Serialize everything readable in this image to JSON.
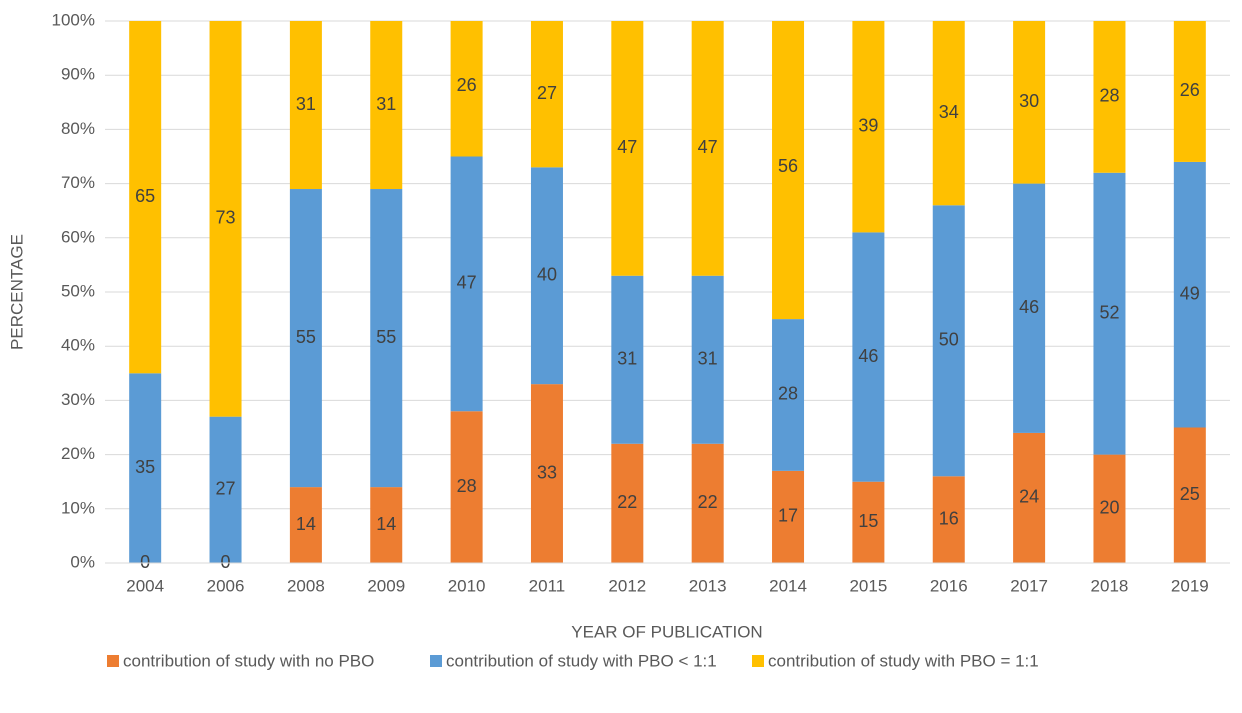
{
  "chart_data": {
    "type": "stacked_bar",
    "xlabel": "YEAR OF PUBLICATION",
    "ylabel": "PERCENTAGE",
    "categories": [
      "2004",
      "2006",
      "2008",
      "2009",
      "2010",
      "2011",
      "2012",
      "2013",
      "2014",
      "2015",
      "2016",
      "2017",
      "2018",
      "2019"
    ],
    "series": [
      {
        "name": "contribution of study with no PBO",
        "color": "#ed7d31",
        "values": [
          0,
          0,
          14,
          14,
          28,
          33,
          22,
          22,
          17,
          15,
          16,
          24,
          20,
          25
        ]
      },
      {
        "name": "contribution of study with PBO < 1:1",
        "color": "#5b9bd5",
        "values": [
          35,
          27,
          55,
          55,
          47,
          40,
          31,
          31,
          28,
          46,
          50,
          46,
          52,
          49
        ]
      },
      {
        "name": "contribution of study with PBO = 1:1",
        "color": "#ffc000",
        "values": [
          65,
          73,
          31,
          31,
          26,
          27,
          47,
          47,
          56,
          39,
          34,
          30,
          28,
          26
        ]
      }
    ],
    "ylim": [
      0,
      100
    ],
    "yticks": [
      {
        "value": 0,
        "label": "0%"
      },
      {
        "value": 10,
        "label": "10%"
      },
      {
        "value": 20,
        "label": "20%"
      },
      {
        "value": 30,
        "label": "30%"
      },
      {
        "value": 40,
        "label": "40%"
      },
      {
        "value": 50,
        "label": "50%"
      },
      {
        "value": 60,
        "label": "60%"
      },
      {
        "value": 70,
        "label": "70%"
      },
      {
        "value": 80,
        "label": "80%"
      },
      {
        "value": 90,
        "label": "90%"
      },
      {
        "value": 100,
        "label": "100%"
      }
    ],
    "grid": true,
    "legend": "bottom"
  }
}
